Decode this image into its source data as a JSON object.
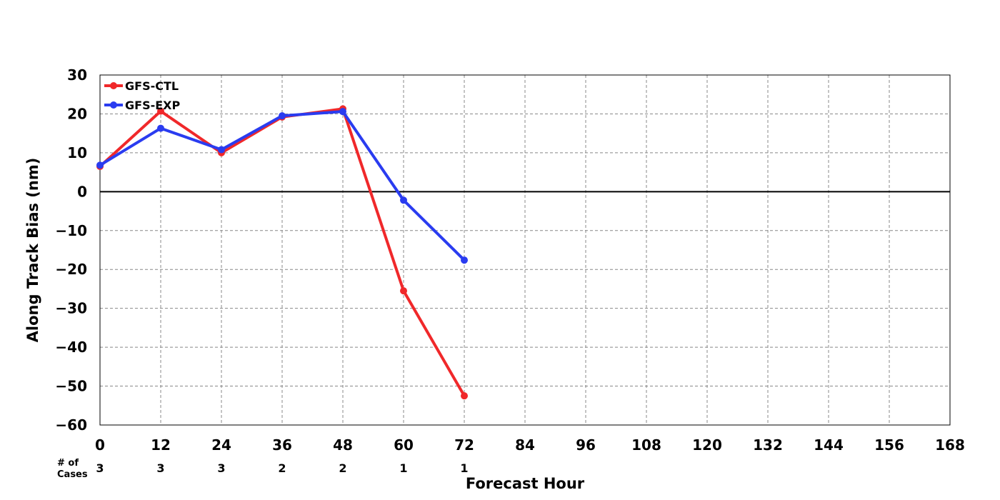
{
  "chart_data": {
    "type": "line",
    "xlabel": "Forecast Hour",
    "ylabel": "Along Track Bias (nm)",
    "xlim": [
      0,
      168
    ],
    "ylim": [
      -60,
      30
    ],
    "xticks": [
      0,
      12,
      24,
      36,
      48,
      60,
      72,
      84,
      96,
      108,
      120,
      132,
      144,
      156,
      168
    ],
    "xtick_labels": [
      "0",
      "12",
      "24",
      "36",
      "48",
      "60",
      "72",
      "84",
      "96",
      "108",
      "120",
      "132",
      "144",
      "156",
      "168"
    ],
    "yticks": [
      30,
      20,
      10,
      0,
      -10,
      -20,
      -30,
      -40,
      -50,
      -60
    ],
    "ytick_labels": [
      "30",
      "20",
      "10",
      "0",
      "−10",
      "−20",
      "−30",
      "−40",
      "−50",
      "−60"
    ],
    "grid": true,
    "legend_position": "top-left",
    "series": [
      {
        "name": "GFS-CTL",
        "color": "#f0282a",
        "x": [
          0,
          12,
          24,
          36,
          48,
          60,
          72
        ],
        "y": [
          6.5,
          20.7,
          10.0,
          19.2,
          21.3,
          -25.5,
          -52.5
        ]
      },
      {
        "name": "GFS-EXP",
        "color": "#2a3cf0",
        "x": [
          0,
          12,
          24,
          36,
          48,
          60,
          72
        ],
        "y": [
          6.8,
          16.3,
          10.8,
          19.5,
          20.6,
          -2.2,
          -17.6
        ]
      }
    ],
    "cases": {
      "label": "# of\nCases",
      "label_lines": [
        "# of",
        "Cases"
      ],
      "x": [
        0,
        12,
        24,
        36,
        48,
        60,
        72
      ],
      "counts": [
        "3",
        "3",
        "3",
        "2",
        "2",
        "1",
        "1"
      ]
    }
  }
}
